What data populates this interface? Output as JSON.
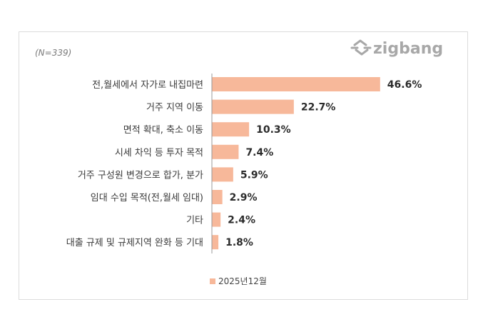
{
  "sample_note": "(N=339)",
  "logo": {
    "text": "zigbang",
    "color": "#a8a8a8",
    "icon": "zigbang-logo-icon"
  },
  "legend": {
    "label": "2025년12월"
  },
  "chart_data": {
    "type": "bar",
    "orientation": "horizontal",
    "categories": [
      "전,월세에서 자가로 내집마련",
      "거주 지역 이동",
      "면적 확대, 축소 이동",
      "시세 차익 등 투자 목적",
      "거주 구성원 변경으로 합가, 분가",
      "임대 수입 목적(전,월세 임대)",
      "기타",
      "대출 규제 및 규제지역 완화 등 기대"
    ],
    "series": [
      {
        "name": "2025년12월",
        "values": [
          46.6,
          22.7,
          10.3,
          7.4,
          5.9,
          2.9,
          2.4,
          1.8
        ],
        "labels": [
          "46.6%",
          "22.7%",
          "10.3%",
          "7.4%",
          "5.9%",
          "2.9%",
          "2.4%",
          "1.8%"
        ],
        "color": "#f7b89a"
      }
    ],
    "xlim": [
      0,
      50
    ],
    "grid": false,
    "legend_position": "bottom",
    "axis_line_color": "#999999"
  }
}
